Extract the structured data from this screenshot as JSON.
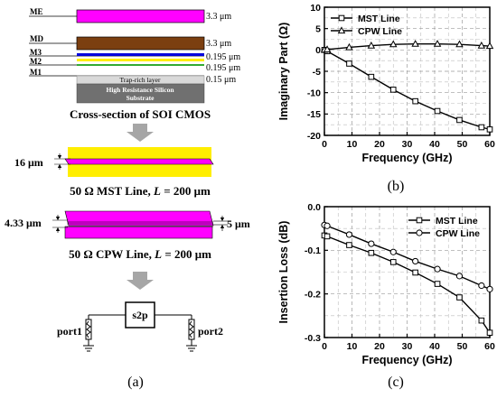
{
  "panel_a": {
    "caption": "(a)",
    "stack": {
      "layers": [
        {
          "name": "ME",
          "thickness": "3.3 μm"
        },
        {
          "name": "MD",
          "thickness": "3.3 μm"
        },
        {
          "name": "M3",
          "thickness": "0.195 μm"
        },
        {
          "name": "M2",
          "thickness": "0.195 μm"
        },
        {
          "name": "M1",
          "thickness": "0.15 μm"
        }
      ],
      "trap_rich_label": "Trap-rich layer",
      "substrate_line1": "High Resistance Silicon",
      "substrate_line2": "Substrate",
      "cross_section_title": "Cross-section of SOI CMOS"
    },
    "mst": {
      "width_label": "16 μm",
      "title_prefix": "50 Ω MST Line, ",
      "title_L": "L",
      "title_suffix": " = 200 μm"
    },
    "cpw": {
      "gap_label": "4.33 μm",
      "width_label": "5 μm",
      "title_prefix": "50 Ω CPW Line, ",
      "title_L": "L",
      "title_suffix": " = 200 μm"
    },
    "circuit": {
      "block_label": "s2p",
      "port1": "port1",
      "port2": "port2"
    },
    "colors": {
      "magenta": "#ff00ff",
      "brown": "#7b3f10",
      "blue": "#0000dd",
      "yellow": "#ffee00",
      "substrate": "#707070",
      "trap": "#d9d9d9",
      "arrow": "#a6a6a6"
    }
  },
  "panel_b": {
    "caption": "(b)"
  },
  "panel_c": {
    "caption": "(c)"
  },
  "chart_data": [
    {
      "type": "line",
      "title": "",
      "xlabel": "Frequency (GHz)",
      "ylabel": "Imaginary Part (Ω)",
      "xlim": [
        0,
        60
      ],
      "ylim": [
        -20,
        10
      ],
      "xticks": [
        0,
        10,
        20,
        30,
        40,
        50,
        60
      ],
      "yticks": [
        -20,
        -15,
        -10,
        -5,
        0,
        5,
        10
      ],
      "grid": true,
      "legend_position": "top-left",
      "series": [
        {
          "name": "MST Line",
          "marker": "square",
          "x": [
            0,
            1,
            9,
            17,
            25,
            33,
            41,
            49,
            57,
            60
          ],
          "y": [
            0,
            -0.3,
            -3.2,
            -6.3,
            -9.3,
            -12.0,
            -14.3,
            -16.4,
            -18.1,
            -18.6
          ]
        },
        {
          "name": "CPW Line",
          "marker": "triangle",
          "x": [
            0,
            1,
            9,
            17,
            25,
            33,
            41,
            49,
            57,
            60
          ],
          "y": [
            0,
            0.1,
            0.6,
            1.0,
            1.3,
            1.4,
            1.4,
            1.3,
            1.0,
            0.9
          ]
        }
      ]
    },
    {
      "type": "line",
      "title": "",
      "xlabel": "Frequency (GHz)",
      "ylabel": "Insertion Loss (dB)",
      "xlim": [
        0,
        60
      ],
      "ylim": [
        -0.3,
        0.0
      ],
      "xticks": [
        0,
        10,
        20,
        30,
        40,
        50,
        60
      ],
      "yticks": [
        -0.3,
        -0.2,
        -0.1,
        0.0
      ],
      "grid": true,
      "legend_position": "top-right",
      "series": [
        {
          "name": "MST Line",
          "marker": "square",
          "x": [
            0,
            1,
            9,
            17,
            25,
            33,
            41,
            49,
            57,
            60
          ],
          "y": [
            -0.066,
            -0.068,
            -0.088,
            -0.106,
            -0.127,
            -0.151,
            -0.177,
            -0.208,
            -0.261,
            -0.289
          ]
        },
        {
          "name": "CPW Line",
          "marker": "circle",
          "x": [
            0,
            1,
            9,
            17,
            25,
            33,
            41,
            49,
            57,
            60
          ],
          "y": [
            -0.042,
            -0.044,
            -0.064,
            -0.085,
            -0.104,
            -0.125,
            -0.143,
            -0.159,
            -0.181,
            -0.189
          ]
        }
      ]
    }
  ]
}
